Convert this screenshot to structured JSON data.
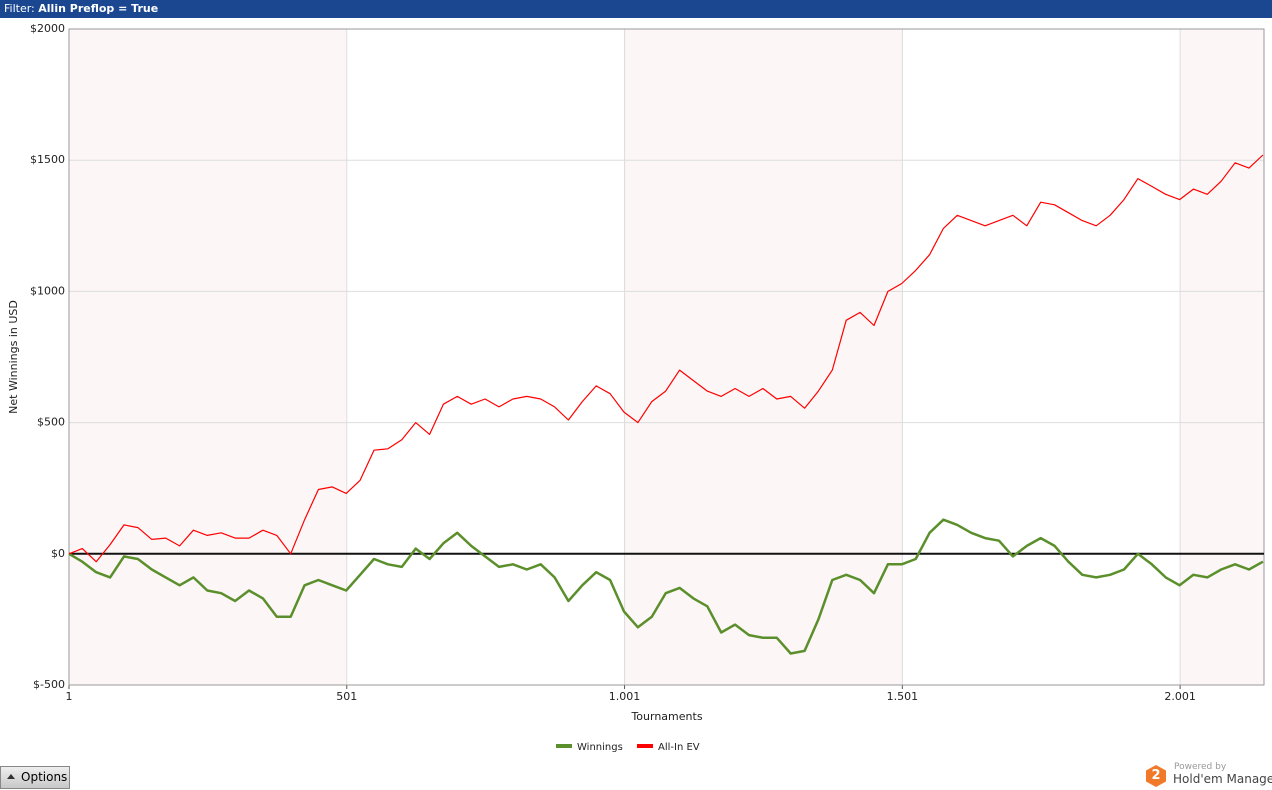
{
  "header": {
    "filter_label": "Filter:",
    "filter_value": "Allin Preflop = True"
  },
  "chart_data": {
    "type": "line",
    "ylabel": "Net Winnings in USD",
    "xlabel": "Tournaments",
    "x": [
      1,
      25,
      50,
      75,
      100,
      125,
      150,
      175,
      200,
      225,
      250,
      275,
      300,
      325,
      350,
      375,
      400,
      425,
      450,
      475,
      500,
      525,
      550,
      575,
      600,
      625,
      650,
      675,
      700,
      725,
      750,
      775,
      800,
      825,
      850,
      875,
      900,
      925,
      950,
      975,
      1000,
      1025,
      1050,
      1075,
      1100,
      1125,
      1150,
      1175,
      1200,
      1225,
      1250,
      1275,
      1300,
      1325,
      1350,
      1375,
      1400,
      1425,
      1450,
      1475,
      1500,
      1525,
      1550,
      1575,
      1600,
      1625,
      1650,
      1675,
      1700,
      1725,
      1750,
      1775,
      1800,
      1825,
      1850,
      1875,
      1900,
      1925,
      1950,
      1975,
      2000,
      2025,
      2050,
      2075,
      2100,
      2125,
      2150
    ],
    "series": [
      {
        "name": "Winnings",
        "color": "#5b8f2b",
        "values": [
          0,
          -30,
          -70,
          -90,
          -10,
          -20,
          -60,
          -90,
          -120,
          -90,
          -140,
          -150,
          -180,
          -140,
          -170,
          -240,
          -240,
          -120,
          -100,
          -120,
          -140,
          -80,
          -20,
          -40,
          -50,
          20,
          -20,
          40,
          80,
          30,
          -10,
          -50,
          -40,
          -60,
          -40,
          -90,
          -180,
          -120,
          -70,
          -100,
          -220,
          -280,
          -240,
          -150,
          -130,
          -170,
          -200,
          -300,
          -270,
          -310,
          -320,
          -320,
          -380,
          -370,
          -250,
          -100,
          -80,
          -100,
          -150,
          -40,
          -40,
          -20,
          80,
          130,
          110,
          80,
          60,
          50,
          -10,
          30,
          60,
          30,
          -30,
          -80,
          -90,
          -80,
          -60,
          0,
          -40,
          -90,
          -120,
          -80,
          -90,
          -60,
          -40,
          -60,
          -30
        ]
      },
      {
        "name": "All-In EV",
        "color": "#ff0000",
        "values": [
          0,
          20,
          -30,
          35,
          110,
          100,
          55,
          60,
          30,
          90,
          70,
          80,
          60,
          60,
          90,
          70,
          0,
          130,
          245,
          255,
          230,
          280,
          395,
          400,
          435,
          500,
          455,
          570,
          600,
          570,
          590,
          560,
          590,
          600,
          590,
          560,
          510,
          580,
          640,
          610,
          540,
          500,
          580,
          620,
          700,
          660,
          620,
          600,
          630,
          600,
          630,
          590,
          600,
          555,
          620,
          700,
          890,
          920,
          870,
          1000,
          1030,
          1080,
          1140,
          1240,
          1290,
          1270,
          1250,
          1270,
          1290,
          1250,
          1340,
          1330,
          1300,
          1270,
          1250,
          1290,
          1350,
          1430,
          1400,
          1370,
          1350,
          1390,
          1370,
          1420,
          1490,
          1470,
          1520
        ]
      }
    ],
    "xlim": [
      1,
      2152
    ],
    "xticks": [
      1,
      501,
      {
        "value": 1001,
        "label": "1.001"
      },
      {
        "value": 1501,
        "label": "1.501"
      },
      {
        "value": 2001,
        "label": "2.001"
      }
    ],
    "ylim": [
      -500,
      2000
    ],
    "yticks": [
      {
        "value": -500,
        "label": "$-500"
      },
      {
        "value": 0,
        "label": "$0"
      },
      {
        "value": 500,
        "label": "$500"
      },
      {
        "value": 1000,
        "label": "$1000"
      },
      {
        "value": 1500,
        "label": "$1500"
      },
      {
        "value": 2000,
        "label": "$2000"
      }
    ],
    "grid": true
  },
  "footer": {
    "options_button": "Options",
    "powered_by": "Powered by",
    "brand": "Hold'em Manager",
    "logo_mark": "2"
  }
}
